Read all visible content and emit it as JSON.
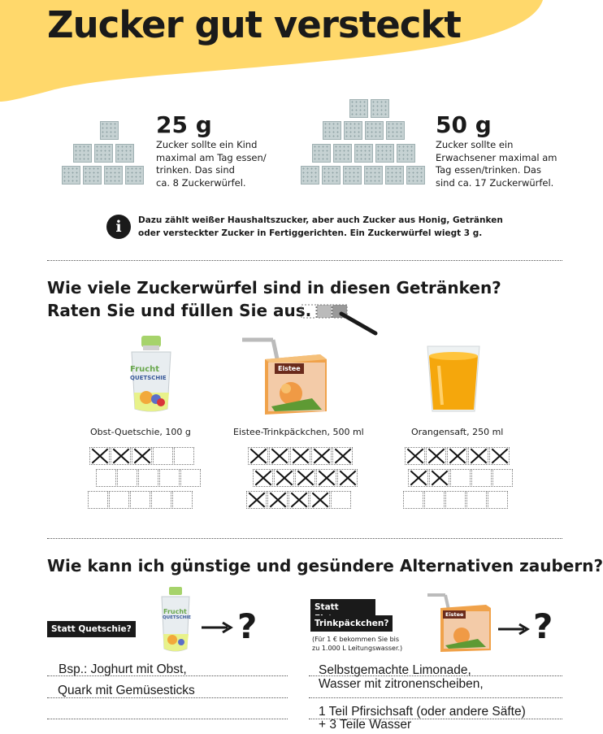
{
  "title": "Zucker gut versteckt",
  "child": {
    "amount": "25 g",
    "text_lines": [
      "Zucker sollte ein Kind",
      "maximal am Tag essen/",
      "trinken. Das sind",
      "ca. 8 Zuckerwürfel."
    ]
  },
  "adult": {
    "amount": "50 g",
    "text_lines": [
      "Zucker sollte ein",
      "Erwachsener maximal am",
      "Tag essen/trinken. Das",
      "sind ca. 17 Zuckerwürfel."
    ]
  },
  "info": {
    "icon": "info-icon",
    "line1": "Dazu zählt weißer Haushaltszucker, aber auch Zucker aus Honig, Getränken",
    "line2": "oder versteckter Zucker in Fertiggerichten. Ein Zuckerwürfel wiegt 3 g."
  },
  "quiz": {
    "heading_line1": "Wie viele Zuckerwürfel sind in diesen Getränken?",
    "heading_line2": "Raten Sie und füllen Sie aus.",
    "products": [
      {
        "caption": "Obst-Quetschie, 100 g",
        "crossed": 3,
        "total": 15
      },
      {
        "caption": "Eistee-Trinkpäckchen, 500 ml",
        "crossed": 14,
        "total": 15
      },
      {
        "caption": "Orangensaft, 250 ml",
        "crossed": 7,
        "total": 15
      }
    ],
    "pouch_label": "Frucht",
    "pouch_sublabel": "QUETSCHIE",
    "carton_label": "Eistee"
  },
  "alternatives": {
    "heading": "Wie kann ich günstige und gesündere Alternativen zaubern?",
    "left": {
      "tag": "Statt Quetschie?",
      "question": "?",
      "answer_line1": "Bsp.: Joghurt mit Obst,",
      "answer_line2": "Quark mit Gemüsesticks"
    },
    "right": {
      "tag_line1": "Statt Eistee-",
      "tag_line2": "Trinkpäckchen?",
      "note_line1": "(Für 1 € bekommen Sie bis",
      "note_line2": "zu 1.000 L Leitungswasser.)",
      "question": "?",
      "answer_line1": "Selbstgemachte Limonade,",
      "answer_line2": "Wasser mit zitronenscheiben,",
      "answer_line3": "1 Teil Pfirsichsaft (oder andere Säfte)",
      "answer_line4": "+ 3 Teile Wasser"
    }
  },
  "colors": {
    "accent_yellow": "#ffd86b",
    "ink": "#1a1a1a",
    "cube": "#c6d2d3"
  }
}
